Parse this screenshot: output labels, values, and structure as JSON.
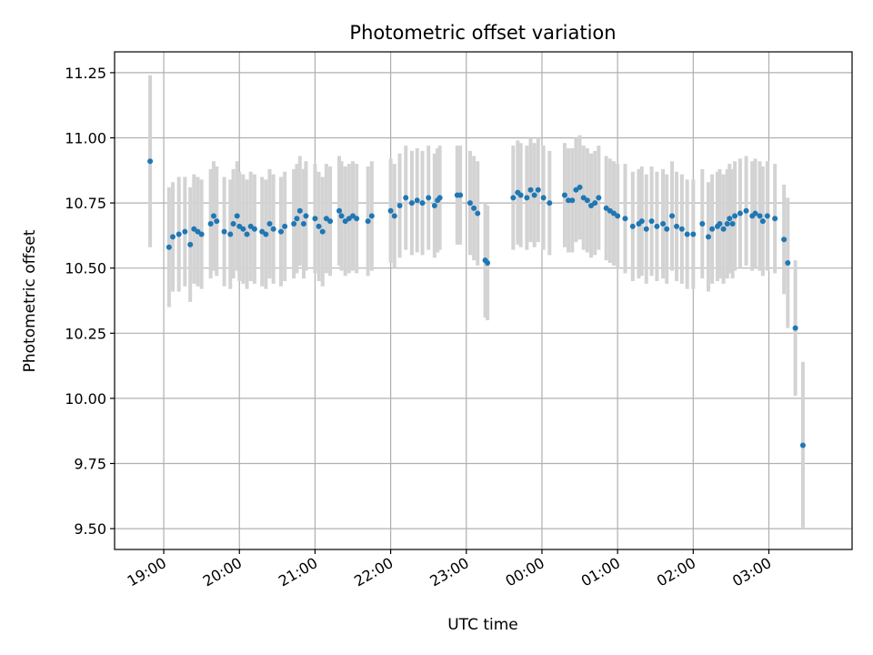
{
  "chart_data": {
    "type": "scatter",
    "title": "Photometric offset variation",
    "xlabel": "UTC time",
    "ylabel": "Photometric offset",
    "x_axis": {
      "unit": "UTC time (hours since 18:00; values past 24 wrap past midnight)",
      "range": [
        18.35,
        28.1
      ],
      "ticks": [
        19,
        20,
        21,
        22,
        23,
        24,
        25,
        26,
        27
      ],
      "tick_labels": [
        "19:00",
        "20:00",
        "21:00",
        "22:00",
        "23:00",
        "00:00",
        "01:00",
        "02:00",
        "03:00"
      ],
      "tick_label_rotation_deg": 30
    },
    "y_axis": {
      "range": [
        9.42,
        11.33
      ],
      "ticks": [
        9.5,
        9.75,
        10.0,
        10.25,
        10.5,
        10.75,
        11.0,
        11.25
      ],
      "tick_labels": [
        "9.50",
        "9.75",
        "10.00",
        "10.25",
        "10.50",
        "10.75",
        "11.00",
        "11.25"
      ]
    },
    "grid": true,
    "colors": {
      "marker": "#1f77b4",
      "errorbar": "#d3d3d3",
      "grid": "#b0b0b0"
    },
    "series": [
      {
        "marker": "dot",
        "x": [
          18.82,
          19.07,
          19.12,
          19.2,
          19.28,
          19.35,
          19.4,
          19.45,
          19.5,
          19.62,
          19.66,
          19.7,
          19.8,
          19.88,
          19.92,
          19.97,
          20.0,
          20.05,
          20.1,
          20.15,
          20.2,
          20.3,
          20.35,
          20.4,
          20.45,
          20.55,
          20.6,
          20.72,
          20.76,
          20.8,
          20.85,
          20.88,
          21.0,
          21.05,
          21.1,
          21.15,
          21.2,
          21.32,
          21.35,
          21.4,
          21.45,
          21.5,
          21.55,
          21.7,
          21.75,
          22.0,
          22.05,
          22.12,
          22.2,
          22.28,
          22.35,
          22.42,
          22.5,
          22.58,
          22.62,
          22.65,
          22.88,
          22.92,
          23.05,
          23.1,
          23.15,
          23.25,
          23.28,
          23.62,
          23.68,
          23.72,
          23.8,
          23.85,
          23.9,
          23.95,
          24.02,
          24.1,
          24.3,
          24.35,
          24.4,
          24.45,
          24.5,
          24.55,
          24.6,
          24.65,
          24.7,
          24.75,
          24.85,
          24.9,
          24.95,
          25.0,
          25.1,
          25.2,
          25.28,
          25.32,
          25.38,
          25.45,
          25.52,
          25.6,
          25.65,
          25.72,
          25.78,
          25.85,
          25.92,
          26.0,
          26.12,
          26.2,
          26.25,
          26.32,
          26.35,
          26.4,
          26.45,
          26.48,
          26.52,
          26.55,
          26.62,
          26.7,
          26.78,
          26.82,
          26.88,
          26.92,
          26.98,
          27.08,
          27.2,
          27.25,
          27.35,
          27.45
        ],
        "y": [
          10.91,
          10.58,
          10.62,
          10.63,
          10.64,
          10.59,
          10.65,
          10.64,
          10.63,
          10.67,
          10.7,
          10.68,
          10.64,
          10.63,
          10.67,
          10.7,
          10.66,
          10.65,
          10.63,
          10.66,
          10.65,
          10.64,
          10.63,
          10.67,
          10.65,
          10.64,
          10.66,
          10.67,
          10.69,
          10.72,
          10.67,
          10.7,
          10.69,
          10.66,
          10.64,
          10.69,
          10.68,
          10.72,
          10.7,
          10.68,
          10.69,
          10.7,
          10.69,
          10.68,
          10.7,
          10.72,
          10.7,
          10.74,
          10.77,
          10.75,
          10.76,
          10.75,
          10.77,
          10.74,
          10.76,
          10.77,
          10.78,
          10.78,
          10.75,
          10.73,
          10.71,
          10.53,
          10.52,
          10.77,
          10.79,
          10.78,
          10.77,
          10.8,
          10.78,
          10.8,
          10.77,
          10.75,
          10.78,
          10.76,
          10.76,
          10.8,
          10.81,
          10.77,
          10.76,
          10.74,
          10.75,
          10.77,
          10.73,
          10.72,
          10.71,
          10.7,
          10.69,
          10.66,
          10.67,
          10.68,
          10.65,
          10.68,
          10.66,
          10.67,
          10.65,
          10.7,
          10.66,
          10.65,
          10.63,
          10.63,
          10.67,
          10.62,
          10.65,
          10.66,
          10.67,
          10.65,
          10.67,
          10.69,
          10.67,
          10.7,
          10.71,
          10.72,
          10.7,
          10.71,
          10.7,
          10.68,
          10.7,
          10.69,
          10.61,
          10.52,
          10.27,
          9.82
        ],
        "err": [
          0.33,
          0.23,
          0.21,
          0.22,
          0.21,
          0.22,
          0.21,
          0.21,
          0.21,
          0.21,
          0.21,
          0.21,
          0.21,
          0.21,
          0.21,
          0.21,
          0.21,
          0.21,
          0.21,
          0.21,
          0.21,
          0.21,
          0.21,
          0.21,
          0.21,
          0.21,
          0.21,
          0.21,
          0.21,
          0.21,
          0.21,
          0.21,
          0.21,
          0.21,
          0.21,
          0.21,
          0.21,
          0.21,
          0.21,
          0.21,
          0.21,
          0.21,
          0.21,
          0.21,
          0.21,
          0.2,
          0.2,
          0.2,
          0.2,
          0.2,
          0.2,
          0.2,
          0.2,
          0.2,
          0.2,
          0.2,
          0.19,
          0.19,
          0.2,
          0.2,
          0.2,
          0.22,
          0.22,
          0.2,
          0.2,
          0.2,
          0.2,
          0.2,
          0.2,
          0.2,
          0.2,
          0.2,
          0.2,
          0.2,
          0.2,
          0.2,
          0.2,
          0.2,
          0.2,
          0.2,
          0.2,
          0.2,
          0.2,
          0.2,
          0.2,
          0.2,
          0.21,
          0.21,
          0.21,
          0.21,
          0.21,
          0.21,
          0.21,
          0.21,
          0.21,
          0.21,
          0.21,
          0.21,
          0.21,
          0.21,
          0.21,
          0.21,
          0.21,
          0.21,
          0.21,
          0.21,
          0.21,
          0.21,
          0.21,
          0.21,
          0.21,
          0.21,
          0.21,
          0.21,
          0.21,
          0.21,
          0.21,
          0.21,
          0.21,
          0.25,
          0.26,
          0.32
        ]
      }
    ]
  }
}
